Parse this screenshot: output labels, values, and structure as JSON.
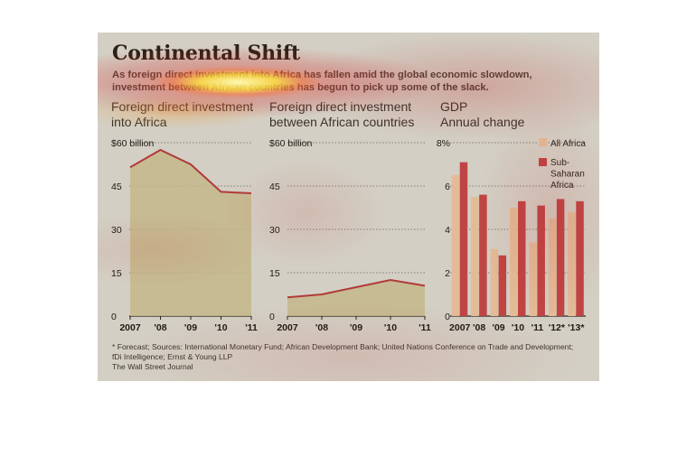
{
  "title": "Continental Shift",
  "subtitle": "As foreign direct investment into Africa has fallen amid the global economic slowdown, investment between African countries has begun to pick up some of the slack.",
  "colors": {
    "background": "#d3cfc4",
    "area_fill": "#c3b78a",
    "line": "#b23a3a",
    "all_africa": "#e3bb96",
    "sub_saharan": "#bf4444"
  },
  "chart_data": [
    {
      "type": "area",
      "title": "Foreign direct investment into Africa",
      "title_lines": [
        "Foreign direct investment",
        "into Africa"
      ],
      "x": [
        "2007",
        "'08",
        "'09",
        "'10",
        "'11"
      ],
      "y_tick_labels": [
        "$60 billion",
        "45",
        "30",
        "15",
        "0"
      ],
      "y_ticks": [
        60,
        45,
        30,
        15,
        0
      ],
      "ylim": [
        0,
        60
      ],
      "series": [
        {
          "values": [
            51.5,
            57.5,
            52.5,
            43.0,
            42.5
          ]
        }
      ],
      "grid": true
    },
    {
      "type": "area",
      "title": "Foreign direct investment between African countries",
      "title_lines": [
        "Foreign direct investment",
        "between African countries"
      ],
      "x": [
        "2007",
        "'08",
        "'09",
        "'10",
        "'11"
      ],
      "y_tick_labels": [
        "$60 billion",
        "45",
        "30",
        "15",
        "0"
      ],
      "y_ticks": [
        60,
        45,
        30,
        15,
        0
      ],
      "ylim": [
        0,
        60
      ],
      "series": [
        {
          "values": [
            6.5,
            7.5,
            10.0,
            12.5,
            10.5
          ]
        }
      ],
      "grid": true
    },
    {
      "type": "bar",
      "title": "GDP Annual change",
      "title_lines": [
        "GDP",
        "Annual change"
      ],
      "categories": [
        "2007",
        "'08",
        "'09",
        "'10",
        "'11",
        "'12*",
        "'13*"
      ],
      "y_tick_labels": [
        "8%",
        "6",
        "4",
        "2",
        "0"
      ],
      "y_ticks": [
        8,
        6,
        4,
        2,
        0
      ],
      "ylim": [
        0,
        8
      ],
      "series": [
        {
          "name": "All Africa",
          "values": [
            6.5,
            5.5,
            3.1,
            5.0,
            3.4,
            4.5,
            4.8
          ]
        },
        {
          "name": "Sub-Saharan Africa",
          "name_lines": [
            "Sub-",
            "Saharan",
            "Africa"
          ],
          "values": [
            7.1,
            5.6,
            2.8,
            5.3,
            5.1,
            5.4,
            5.3
          ]
        }
      ],
      "legend": "top-right",
      "grid": true
    }
  ],
  "footnote_lines": [
    "* Forecast; Sources: International Monetary Fund; African Development Bank; United Nations Conference on Trade and Development;",
    "fDi Intelligence; Ernst & Young LLP"
  ],
  "credit": "The Wall Street Journal"
}
